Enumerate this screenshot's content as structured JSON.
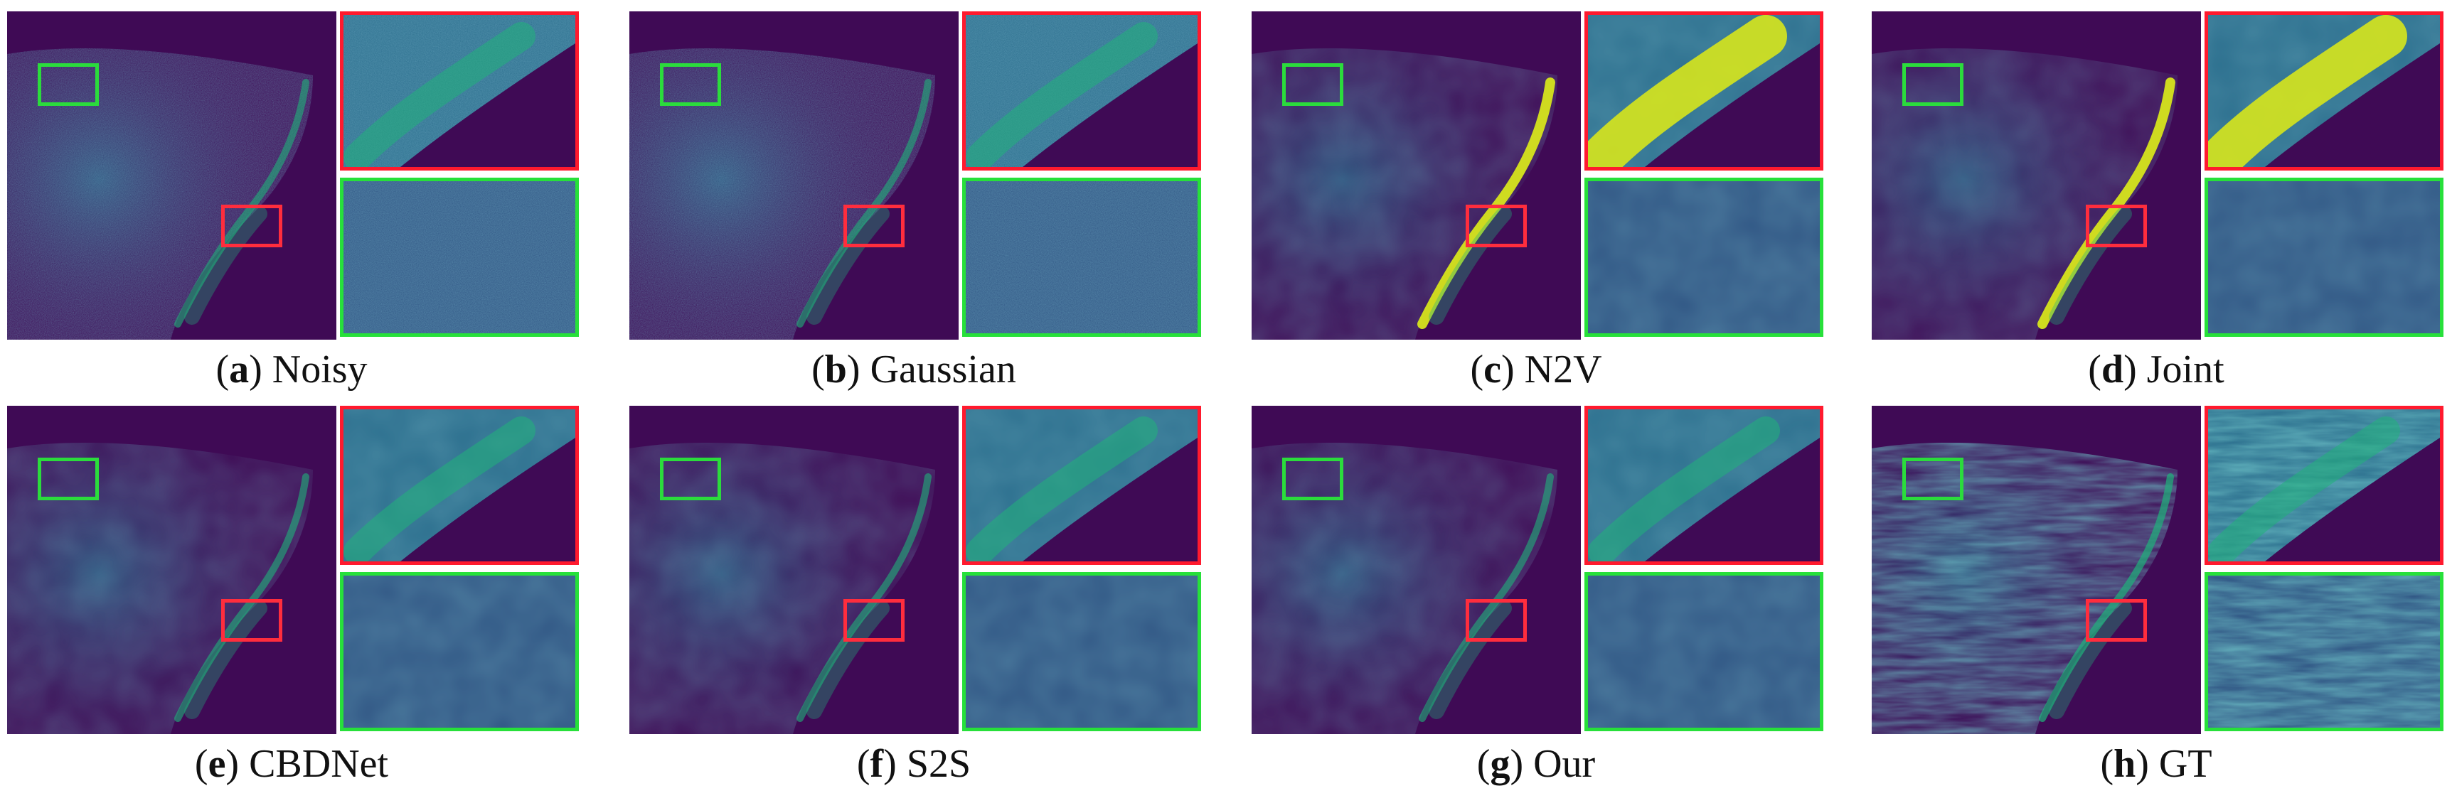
{
  "figure_colors": {
    "background_dark": "#3f0a55",
    "signal_mid": "#2c6f8e",
    "signal_high": "#20b27a",
    "signal_peak": "#d7e51c",
    "roi_red": "#ff2d3d",
    "roi_green": "#2bdc3c"
  },
  "panels": [
    {
      "letter": "a",
      "method": "Noisy",
      "style": "noisy"
    },
    {
      "letter": "b",
      "method": "Gaussian",
      "style": "noisy"
    },
    {
      "letter": "c",
      "method": "N2V",
      "style": "bright"
    },
    {
      "letter": "d",
      "method": "Joint",
      "style": "bright"
    },
    {
      "letter": "e",
      "method": "CBDNet",
      "style": "smooth"
    },
    {
      "letter": "f",
      "method": "S2S",
      "style": "smooth"
    },
    {
      "letter": "g",
      "method": "Our",
      "style": "smooth"
    },
    {
      "letter": "h",
      "method": "GT",
      "style": "fibrous"
    }
  ]
}
